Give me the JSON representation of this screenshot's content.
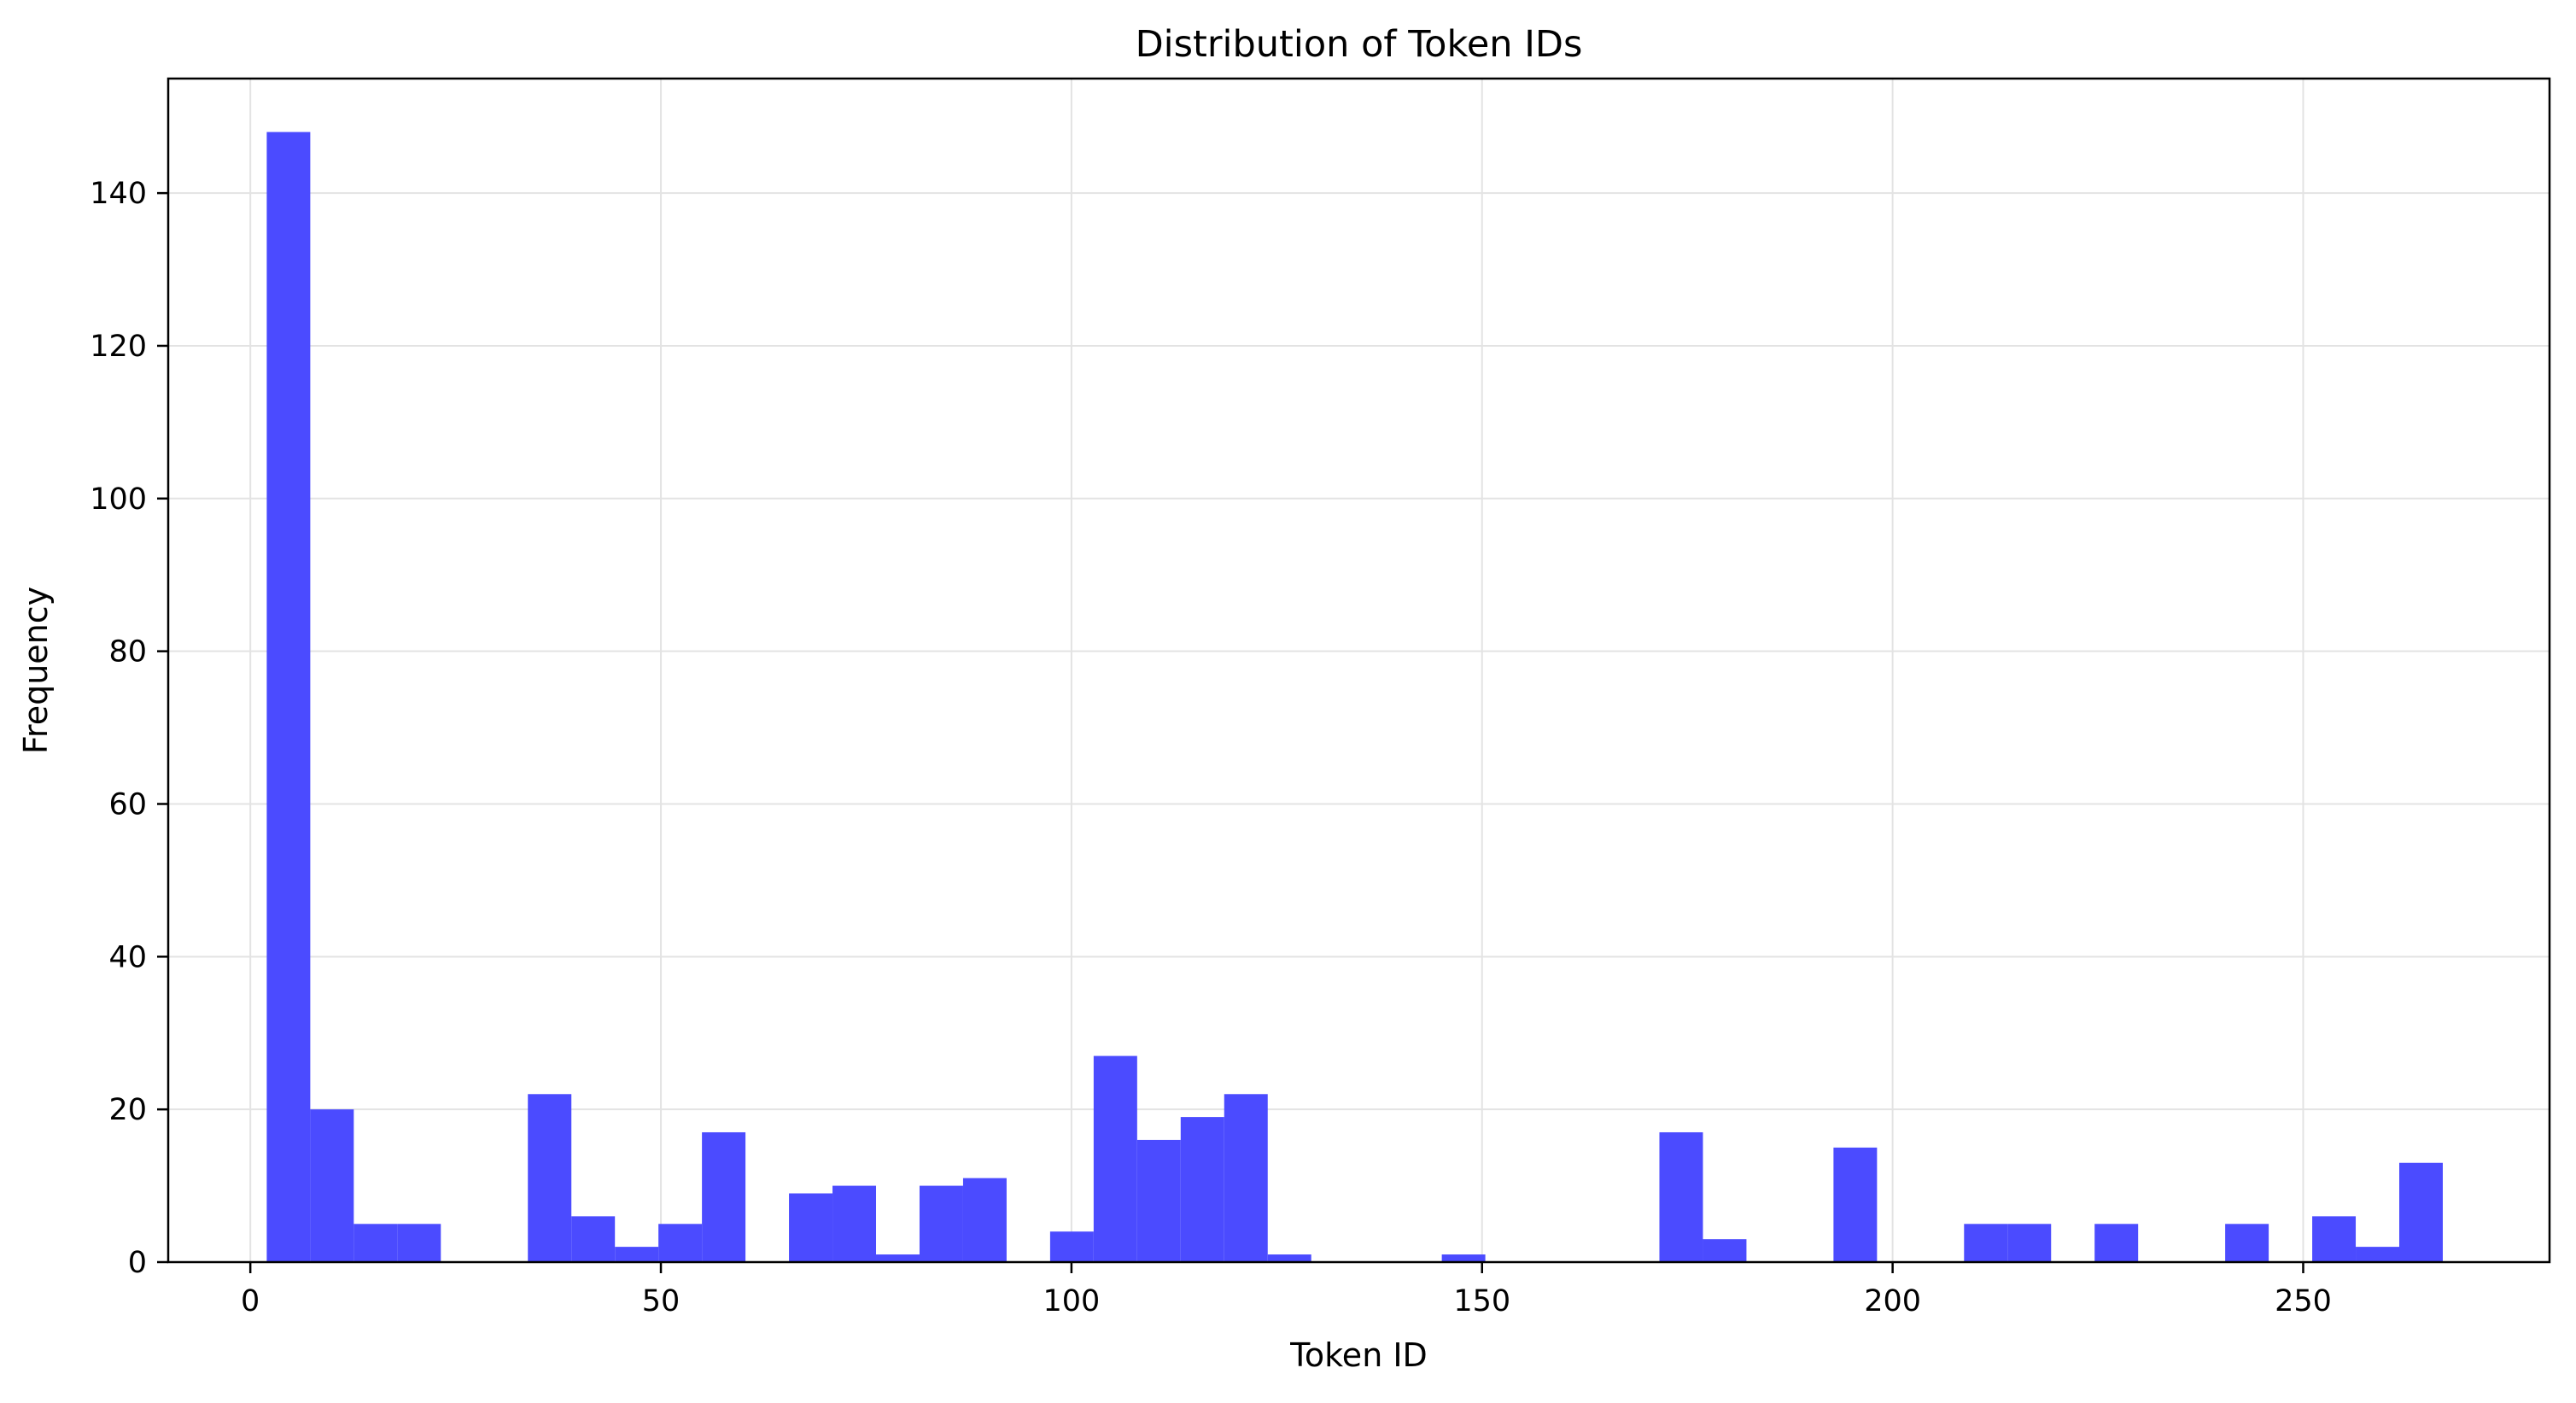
{
  "chart_data": {
    "type": "bar",
    "title": "Distribution of Token IDs",
    "xlabel": "Token ID",
    "ylabel": "Frequency",
    "xlim": [
      -10,
      280
    ],
    "ylim": [
      0,
      155
    ],
    "xticks": [
      0,
      50,
      100,
      150,
      200,
      250
    ],
    "yticks": [
      0,
      20,
      40,
      60,
      80,
      100,
      120,
      140
    ],
    "grid": true,
    "bin_start": 2,
    "bin_width": 5.3,
    "values": [
      148,
      20,
      5,
      5,
      0,
      0,
      22,
      6,
      2,
      5,
      17,
      0,
      9,
      10,
      1,
      10,
      11,
      0,
      4,
      27,
      16,
      19,
      22,
      1,
      0,
      0,
      0,
      1,
      0,
      0,
      0,
      0,
      17,
      3,
      0,
      0,
      15,
      0,
      0,
      5,
      5,
      0,
      5,
      0,
      0,
      5,
      0,
      6,
      2,
      13
    ],
    "bar_color": "#4b4bff",
    "grid_color": "#e3e3e3"
  }
}
